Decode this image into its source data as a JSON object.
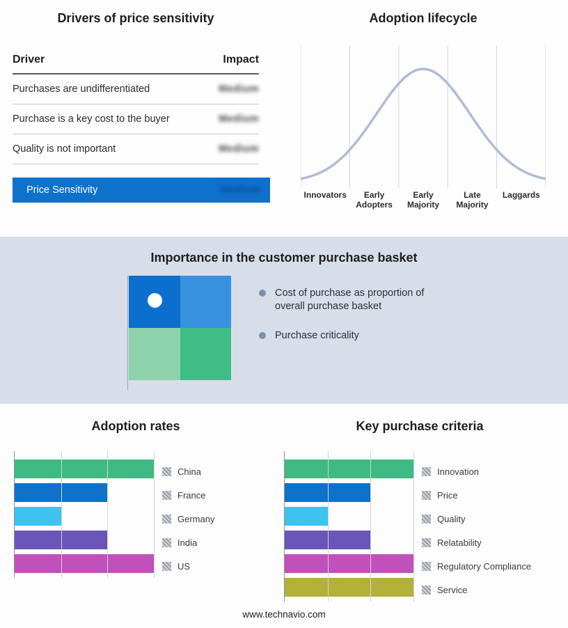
{
  "drivers_panel": {
    "title": "Drivers of price sensitivity",
    "columns": {
      "driver": "Driver",
      "impact": "Impact"
    },
    "rows": [
      {
        "driver": "Purchases are undifferentiated",
        "impact": "Medium"
      },
      {
        "driver": "Purchase is a key cost to the buyer",
        "impact": "Medium"
      },
      {
        "driver": "Quality is not important",
        "impact": "Medium"
      }
    ],
    "summary_row": {
      "label": "Price Sensitivity",
      "impact": "Medium"
    },
    "highlight_color": "#0e71cc"
  },
  "lifecycle_panel": {
    "title": "Adoption lifecycle",
    "stages": [
      "Innovators",
      "Early Adopters",
      "Early Majority",
      "Late Majority",
      "Laggards"
    ],
    "curve_color": "#aebdd3"
  },
  "purchase_basket": {
    "title": "Importance in the customer purchase basket",
    "bullets": [
      "Cost of purchase as proportion of overall purchase basket",
      "Purchase criticality"
    ],
    "band_color": "#d7dee9",
    "bullet_color": "#7a90ad",
    "quadrant_colors": {
      "top_left": "#0b6fce",
      "top_right": "#3892e0",
      "bottom_left": "#8ed2ab",
      "bottom_right": "#3fbd86"
    }
  },
  "footer": {
    "url": "www.technavio.com"
  },
  "chart_data": [
    {
      "type": "bar",
      "orientation": "horizontal",
      "title": "Adoption rates",
      "categories": [
        "China",
        "France",
        "Germany",
        "India",
        "US"
      ],
      "values": [
        3,
        2,
        1,
        2,
        3
      ],
      "colors": [
        "#3eba82",
        "#0e72c8",
        "#3cc3f0",
        "#6c55b8",
        "#c051ba"
      ],
      "xlim": [
        0,
        3
      ],
      "grid": true,
      "legend_position": "right"
    },
    {
      "type": "bar",
      "orientation": "horizontal",
      "title": "Key purchase criteria",
      "categories": [
        "Innovation",
        "Price",
        "Quality",
        "Relatability",
        "Regulatory Compliance",
        "Service"
      ],
      "values": [
        3,
        2,
        1,
        2,
        3,
        3
      ],
      "colors": [
        "#3eba82",
        "#0e72c8",
        "#3cc3f0",
        "#6c55b8",
        "#c051ba",
        "#b3b13a"
      ],
      "xlim": [
        0,
        3
      ],
      "grid": true,
      "legend_position": "right"
    },
    {
      "type": "line",
      "title": "Adoption lifecycle",
      "shape": "bell-curve",
      "x_categories": [
        "Innovators",
        "Early Adopters",
        "Early Majority",
        "Late Majority",
        "Laggards"
      ],
      "peak_stage": "Early Majority",
      "grid": true
    }
  ]
}
